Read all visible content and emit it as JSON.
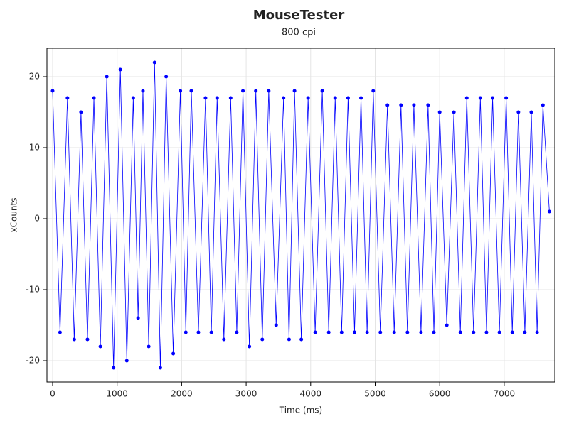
{
  "chart_data": {
    "type": "scatter-line",
    "title": "MouseTester",
    "subtitle": "800 cpi",
    "x_label": "Time (ms)",
    "y_label": "xCounts",
    "color": "#0000ff",
    "grid": true,
    "xlim": [
      -88,
      7784
    ],
    "ylim": [
      -23,
      24
    ],
    "xticks": [
      0,
      1000,
      2000,
      3000,
      4000,
      5000,
      6000,
      7000
    ],
    "yticks": [
      -20,
      -10,
      0,
      10,
      20
    ],
    "x": [
      0,
      115,
      230,
      335,
      440,
      540,
      640,
      740,
      840,
      945,
      1050,
      1150,
      1250,
      1325,
      1400,
      1490,
      1580,
      1670,
      1760,
      1870,
      1980,
      2065,
      2150,
      2260,
      2370,
      2460,
      2550,
      2655,
      2760,
      2855,
      2950,
      3050,
      3150,
      3250,
      3350,
      3465,
      3580,
      3665,
      3750,
      3855,
      3960,
      4070,
      4180,
      4280,
      4380,
      4480,
      4580,
      4680,
      4780,
      4875,
      4970,
      5080,
      5190,
      5295,
      5400,
      5500,
      5600,
      5710,
      5820,
      5910,
      6000,
      6110,
      6220,
      6320,
      6420,
      6525,
      6630,
      6725,
      6820,
      6925,
      7030,
      7125,
      7220,
      7320,
      7420,
      7510,
      7600,
      7700
    ],
    "y": [
      18,
      -16,
      17,
      -17,
      15,
      -17,
      17,
      -18,
      20,
      -21,
      21,
      -20,
      17,
      -14,
      18,
      -18,
      22,
      -21,
      20,
      -19,
      18,
      -16,
      18,
      -16,
      17,
      -16,
      17,
      -17,
      17,
      -16,
      18,
      -18,
      18,
      -17,
      18,
      -15,
      17,
      -17,
      18,
      -17,
      17,
      -16,
      18,
      -16,
      17,
      -16,
      17,
      -16,
      17,
      -16,
      18,
      -16,
      16,
      -16,
      16,
      -16,
      16,
      -16,
      16,
      -16,
      15,
      -15,
      15,
      -16,
      17,
      -16,
      17,
      -16,
      17,
      -16,
      17,
      -16,
      15,
      -16,
      15,
      -16,
      16,
      1
    ]
  }
}
